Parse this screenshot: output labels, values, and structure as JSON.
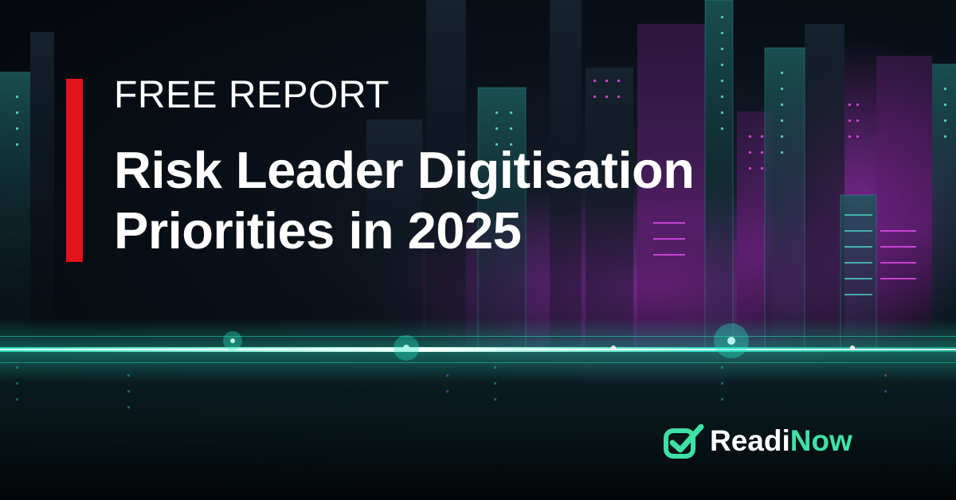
{
  "eyebrow": "FREE REPORT",
  "headline": {
    "line1": "Risk Leader Digitisation",
    "line2": "Priorities in 2025"
  },
  "logo": {
    "part1": "Readi",
    "part2": "Now",
    "icon": "checkmark-icon"
  },
  "colors": {
    "accent_bar": "#e3121c",
    "text": "#ffffff",
    "brand_green": "#3fe0a6",
    "glow_teal": "#27e8c6",
    "glow_magenta": "#c12fd6"
  }
}
